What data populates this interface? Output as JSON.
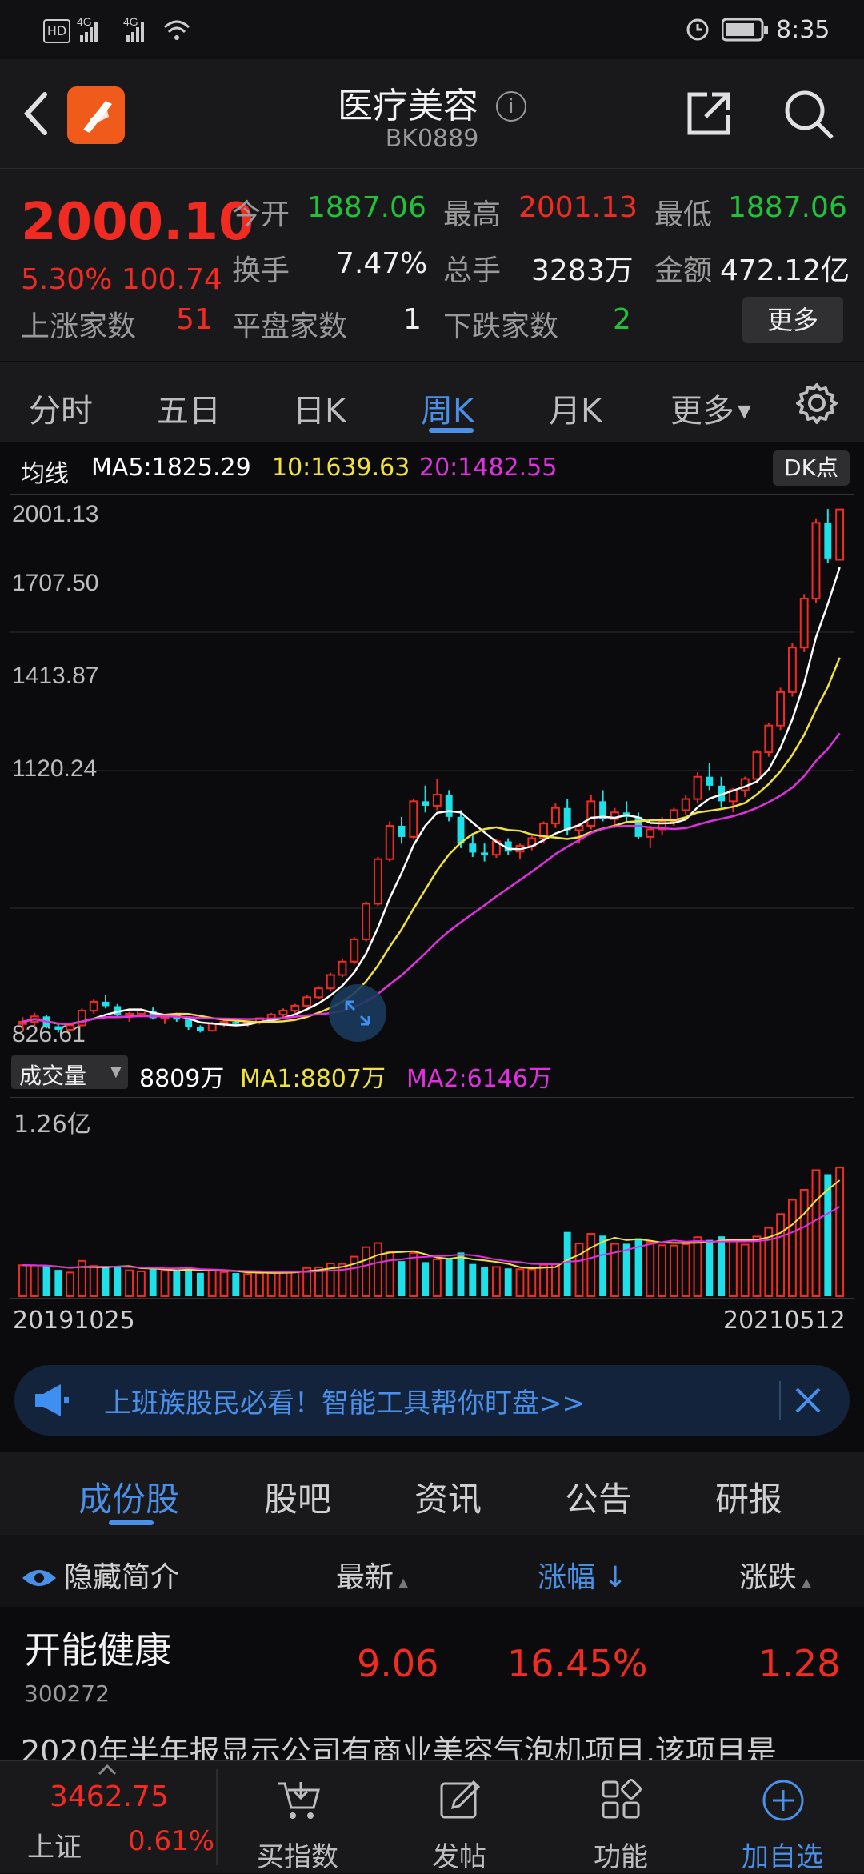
{
  "status_bar": {
    "left_icons": [
      "hd-icon",
      "signal-4g-icon",
      "signal-4g-icon",
      "wifi-icon"
    ],
    "time": "8:35"
  },
  "header": {
    "title": "医疗美容",
    "code": "BK0889"
  },
  "quote": {
    "price": "2000.10",
    "change_pct": "5.30%",
    "change_val": "100.74",
    "open_label": "今开",
    "open": "1887.06",
    "high_label": "最高",
    "high": "2001.13",
    "low_label": "最低",
    "low": "1887.06",
    "turnover_label": "换手",
    "turnover": "7.47%",
    "volume_label": "总手",
    "volume": "3283万",
    "amount_label": "金额",
    "amount": "472.12亿",
    "up_label": "上涨家数",
    "up": "51",
    "flat_label": "平盘家数",
    "flat": "1",
    "down_label": "下跌家数",
    "down": "2",
    "more_button": "更多"
  },
  "period_tabs": [
    "分时",
    "五日",
    "日K",
    "周K",
    "月K",
    "更多"
  ],
  "active_period": "周K",
  "ma_legend": {
    "label": "均线",
    "ma5": "MA5:1825.29",
    "ma10": "10:1639.63",
    "ma20": "20:1482.55",
    "dk_button": "DK点"
  },
  "price_axis": [
    "2001.13",
    "1707.50",
    "1413.87",
    "1120.24",
    "826.61"
  ],
  "volume_legend": {
    "selector": "成交量",
    "vol": "8809万",
    "ma1": "MA1:8807万",
    "ma2": "MA2:6146万",
    "max_label": "1.26亿"
  },
  "date_range": {
    "start": "20191025",
    "end": "20210512"
  },
  "colors": {
    "up": "#f12b22",
    "down": "#1ee0e8",
    "ma5": "#ffffff",
    "ma10": "#f0e23c",
    "ma20": "#e030e0",
    "accent": "#4a8fe8"
  },
  "chart_data": {
    "type": "candlestick",
    "ylim": [
      826.61,
      2001.13
    ],
    "price": [
      [
        845,
        860,
        828,
        850
      ],
      [
        850,
        870,
        838,
        862
      ],
      [
        862,
        865,
        835,
        840
      ],
      [
        840,
        848,
        826,
        832
      ],
      [
        832,
        845,
        828,
        842
      ],
      [
        842,
        880,
        838,
        875
      ],
      [
        875,
        900,
        868,
        895
      ],
      [
        895,
        910,
        880,
        885
      ],
      [
        885,
        890,
        860,
        865
      ],
      [
        865,
        872,
        850,
        868
      ],
      [
        868,
        880,
        860,
        875
      ],
      [
        875,
        882,
        855,
        858
      ],
      [
        858,
        866,
        845,
        862
      ],
      [
        862,
        870,
        850,
        855
      ],
      [
        855,
        860,
        832,
        838
      ],
      [
        838,
        842,
        826,
        830
      ],
      [
        830,
        850,
        828,
        846
      ],
      [
        846,
        856,
        838,
        850
      ],
      [
        850,
        858,
        842,
        845
      ],
      [
        845,
        852,
        838,
        848
      ],
      [
        848,
        860,
        844,
        858
      ],
      [
        858,
        870,
        852,
        866
      ],
      [
        866,
        880,
        860,
        875
      ],
      [
        875,
        890,
        870,
        886
      ],
      [
        886,
        910,
        882,
        905
      ],
      [
        905,
        930,
        900,
        925
      ],
      [
        925,
        960,
        920,
        955
      ],
      [
        955,
        990,
        950,
        985
      ],
      [
        985,
        1040,
        980,
        1035
      ],
      [
        1035,
        1120,
        1030,
        1115
      ],
      [
        1115,
        1220,
        1110,
        1215
      ],
      [
        1215,
        1300,
        1210,
        1290
      ],
      [
        1290,
        1310,
        1250,
        1265
      ],
      [
        1265,
        1350,
        1260,
        1345
      ],
      [
        1345,
        1380,
        1320,
        1335
      ],
      [
        1335,
        1395,
        1325,
        1360
      ],
      [
        1360,
        1370,
        1300,
        1310
      ],
      [
        1310,
        1325,
        1240,
        1250
      ],
      [
        1250,
        1270,
        1220,
        1230
      ],
      [
        1230,
        1250,
        1210,
        1225
      ],
      [
        1225,
        1260,
        1218,
        1255
      ],
      [
        1255,
        1262,
        1225,
        1232
      ],
      [
        1232,
        1250,
        1215,
        1245
      ],
      [
        1245,
        1270,
        1235,
        1262
      ],
      [
        1262,
        1300,
        1250,
        1295
      ],
      [
        1295,
        1340,
        1285,
        1330
      ],
      [
        1330,
        1350,
        1270,
        1280
      ],
      [
        1280,
        1295,
        1250,
        1290
      ],
      [
        1290,
        1360,
        1282,
        1345
      ],
      [
        1345,
        1370,
        1300,
        1305
      ],
      [
        1305,
        1330,
        1285,
        1320
      ],
      [
        1320,
        1345,
        1300,
        1310
      ],
      [
        1310,
        1320,
        1260,
        1265
      ],
      [
        1265,
        1290,
        1240,
        1282
      ],
      [
        1282,
        1310,
        1270,
        1300
      ],
      [
        1300,
        1330,
        1290,
        1325
      ],
      [
        1325,
        1360,
        1315,
        1350
      ],
      [
        1350,
        1410,
        1340,
        1400
      ],
      [
        1400,
        1430,
        1370,
        1380
      ],
      [
        1380,
        1400,
        1330,
        1345
      ],
      [
        1345,
        1375,
        1320,
        1370
      ],
      [
        1370,
        1400,
        1355,
        1395
      ],
      [
        1395,
        1460,
        1385,
        1455
      ],
      [
        1455,
        1520,
        1445,
        1515
      ],
      [
        1515,
        1600,
        1505,
        1590
      ],
      [
        1590,
        1700,
        1580,
        1690
      ],
      [
        1690,
        1810,
        1680,
        1800
      ],
      [
        1800,
        1980,
        1790,
        1970
      ],
      [
        1970,
        2001,
        1880,
        1890
      ],
      [
        1887,
        2001,
        1887,
        2000
      ]
    ],
    "volume_max_label": "1.26亿"
  },
  "ad_banner": {
    "text": "上班族股民必看！智能工具帮你盯盘>>"
  },
  "content_tabs": [
    "成份股",
    "股吧",
    "资讯",
    "公告",
    "研报"
  ],
  "active_content_tab": "成份股",
  "list_header": {
    "hide": "隐藏简介",
    "latest": "最新",
    "change_pct": "涨幅",
    "change": "涨跌"
  },
  "rows": [
    {
      "name": "开能健康",
      "code": "300272",
      "latest": "9.06",
      "pct": "16.45%",
      "change": "1.28"
    }
  ],
  "description": "2020年半年报显示公司有商业美容气泡机项目,该项目是",
  "bottom_nav": {
    "index_price": "3462.75",
    "index_name": "上证",
    "index_pct": "0.61%",
    "items": [
      "买指数",
      "发帖",
      "功能",
      "加自选"
    ]
  }
}
